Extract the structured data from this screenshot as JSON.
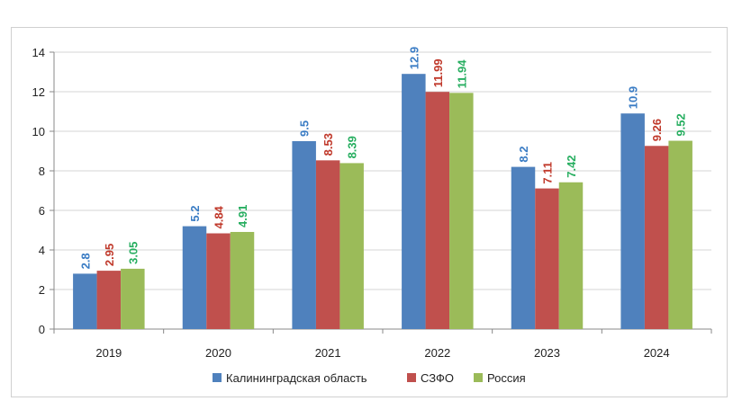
{
  "chart_data": {
    "type": "bar",
    "categories": [
      "2019",
      "2020",
      "2021",
      "2022",
      "2023",
      "2024"
    ],
    "series": [
      {
        "name": "Калининградская область",
        "color": "#4f81bd",
        "label_color": "#3a7cc4",
        "values": [
          2.8,
          5.2,
          9.5,
          12.9,
          8.2,
          10.9
        ],
        "labels": [
          "2.8",
          "5.2",
          "9.5",
          "12.9",
          "8.2",
          "10.9"
        ]
      },
      {
        "name": "СЗФО",
        "color": "#c0504d",
        "label_color": "#c0392b",
        "values": [
          2.95,
          4.84,
          8.53,
          11.99,
          7.11,
          9.26
        ],
        "labels": [
          "2.95",
          "4.84",
          "8.53",
          "11.99",
          "7.11",
          "9.26"
        ]
      },
      {
        "name": "Россия",
        "color": "#9bbb59",
        "label_color": "#27ae60",
        "values": [
          3.05,
          4.91,
          8.39,
          11.94,
          7.42,
          9.52
        ],
        "labels": [
          "3.05",
          "4.91",
          "8.39",
          "11.94",
          "7.42",
          "9.52"
        ]
      }
    ],
    "ylim": [
      0,
      14
    ],
    "yticks": [
      "0",
      "2",
      "4",
      "6",
      "8",
      "10",
      "12",
      "14"
    ],
    "grid": true,
    "legend_position": "bottom",
    "title": "",
    "xlabel": "",
    "ylabel": ""
  }
}
